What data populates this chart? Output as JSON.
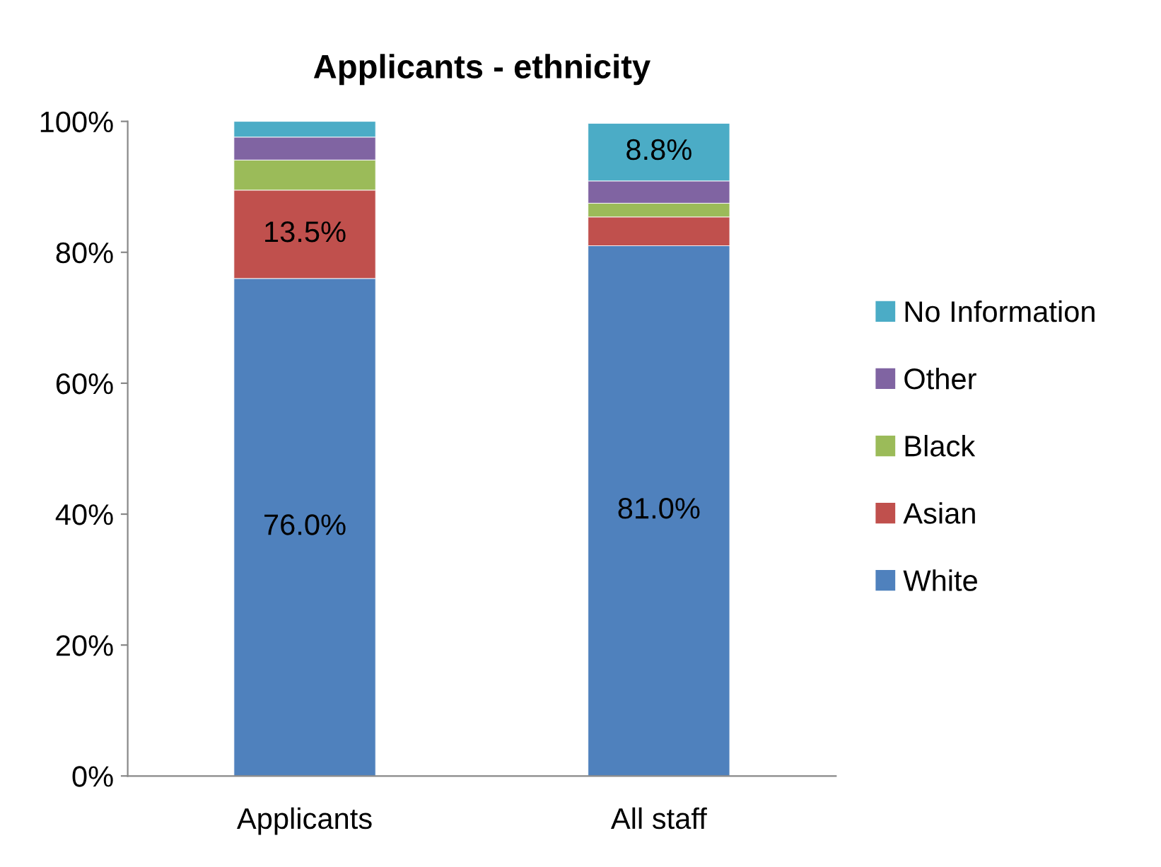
{
  "chart_data": {
    "type": "bar",
    "stacked": true,
    "title": "Applicants - ethnicity",
    "categories": [
      "Applicants",
      "All staff"
    ],
    "series": [
      {
        "name": "White",
        "color": "#4f81bd",
        "values": [
          76.0,
          81.0
        ],
        "value_labels": [
          "76.0%",
          "81.0%"
        ]
      },
      {
        "name": "Asian",
        "color": "#c0504d",
        "values": [
          13.5,
          4.4
        ],
        "value_labels": [
          "13.5%",
          null
        ]
      },
      {
        "name": "Black",
        "color": "#9bbb59",
        "values": [
          4.6,
          2.1
        ]
      },
      {
        "name": "Other",
        "color": "#8064a2",
        "values": [
          3.5,
          3.4
        ]
      },
      {
        "name": "No Information",
        "color": "#4bacc6",
        "values": [
          2.4,
          8.8
        ],
        "value_labels": [
          null,
          "8.8%"
        ]
      }
    ],
    "ylim": [
      0,
      100
    ],
    "yticks": [
      {
        "value": 0,
        "label": "0%"
      },
      {
        "value": 20,
        "label": "20%"
      },
      {
        "value": 40,
        "label": "40%"
      },
      {
        "value": 60,
        "label": "60%"
      },
      {
        "value": 80,
        "label": "80%"
      },
      {
        "value": 100,
        "label": "100%"
      }
    ],
    "grid": false,
    "legend": "right"
  }
}
